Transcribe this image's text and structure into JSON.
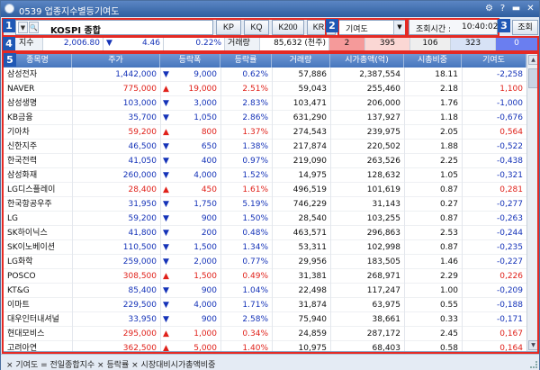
{
  "window": {
    "title": "0539 업종지수별등기여도",
    "settings_icon": "gear-icon",
    "help_label": "?",
    "min_label": "▬",
    "close_label": "✕"
  },
  "markers": [
    "1",
    "2",
    "3",
    "4",
    "5"
  ],
  "toolbar": {
    "code_name": "KOSPI 종합",
    "buttons": [
      "KP",
      "KQ",
      "K200",
      "KRX"
    ],
    "combo_value": "기여도",
    "time_label": "조회시간 :",
    "time_value": "10:40:02",
    "query_button": "조회"
  },
  "summary": {
    "index_label": "지수",
    "index_value": "2,006.80",
    "change_arrow": "▼",
    "change_value": "4.46",
    "change_rate": "0.22%",
    "volume_label": "거래량",
    "volume_value": "85,632 (천주)",
    "stat1": "2",
    "stat2": "395",
    "stat3": "106",
    "stat4": "323",
    "stat5": "0"
  },
  "columns": [
    "종목명",
    "주가",
    "등락폭",
    "등락률",
    "거래량",
    "시가총액(억)",
    "시총비중",
    "기여도"
  ],
  "rows": [
    {
      "name": "삼성전자",
      "price": "1,442,000",
      "dir": "down",
      "change": "9,000",
      "rate": "0.62%",
      "volume": "57,886",
      "cap": "2,387,554",
      "weight": "18.11",
      "contrib": "-2,258"
    },
    {
      "name": "NAVER",
      "price": "775,000",
      "dir": "up",
      "change": "19,000",
      "rate": "2.51%",
      "volume": "59,043",
      "cap": "255,460",
      "weight": "2.18",
      "contrib": "1,100"
    },
    {
      "name": "삼성생명",
      "price": "103,000",
      "dir": "down",
      "change": "3,000",
      "rate": "2.83%",
      "volume": "103,471",
      "cap": "206,000",
      "weight": "1.76",
      "contrib": "-1,000"
    },
    {
      "name": "KB금융",
      "price": "35,700",
      "dir": "down",
      "change": "1,050",
      "rate": "2.86%",
      "volume": "631,290",
      "cap": "137,927",
      "weight": "1.18",
      "contrib": "-0,676"
    },
    {
      "name": "기아차",
      "price": "59,200",
      "dir": "up",
      "change": "800",
      "rate": "1.37%",
      "volume": "274,543",
      "cap": "239,975",
      "weight": "2.05",
      "contrib": "0,564"
    },
    {
      "name": "신한지주",
      "price": "46,500",
      "dir": "down",
      "change": "650",
      "rate": "1.38%",
      "volume": "217,874",
      "cap": "220,502",
      "weight": "1.88",
      "contrib": "-0,522"
    },
    {
      "name": "한국전력",
      "price": "41,050",
      "dir": "down",
      "change": "400",
      "rate": "0.97%",
      "volume": "219,090",
      "cap": "263,526",
      "weight": "2.25",
      "contrib": "-0,438"
    },
    {
      "name": "삼성화재",
      "price": "260,000",
      "dir": "down",
      "change": "4,000",
      "rate": "1.52%",
      "volume": "14,975",
      "cap": "128,632",
      "weight": "1.05",
      "contrib": "-0,321"
    },
    {
      "name": "LG디스플레이",
      "price": "28,400",
      "dir": "up",
      "change": "450",
      "rate": "1.61%",
      "volume": "496,519",
      "cap": "101,619",
      "weight": "0.87",
      "contrib": "0,281"
    },
    {
      "name": "한국항공우주",
      "price": "31,950",
      "dir": "down",
      "change": "1,750",
      "rate": "5.19%",
      "volume": "746,229",
      "cap": "31,143",
      "weight": "0.27",
      "contrib": "-0,277"
    },
    {
      "name": "LG",
      "price": "59,200",
      "dir": "down",
      "change": "900",
      "rate": "1.50%",
      "volume": "28,540",
      "cap": "103,255",
      "weight": "0.87",
      "contrib": "-0,263"
    },
    {
      "name": "SK하이닉스",
      "price": "41,800",
      "dir": "down",
      "change": "200",
      "rate": "0.48%",
      "volume": "463,571",
      "cap": "296,863",
      "weight": "2.53",
      "contrib": "-0,244"
    },
    {
      "name": "SK이노베이션",
      "price": "110,500",
      "dir": "down",
      "change": "1,500",
      "rate": "1.34%",
      "volume": "53,311",
      "cap": "102,998",
      "weight": "0.87",
      "contrib": "-0,235"
    },
    {
      "name": "LG화학",
      "price": "259,000",
      "dir": "down",
      "change": "2,000",
      "rate": "0.77%",
      "volume": "29,956",
      "cap": "183,505",
      "weight": "1.46",
      "contrib": "-0,227"
    },
    {
      "name": "POSCO",
      "price": "308,500",
      "dir": "up",
      "change": "1,500",
      "rate": "0.49%",
      "volume": "31,381",
      "cap": "268,971",
      "weight": "2.29",
      "contrib": "0,226"
    },
    {
      "name": "KT&G",
      "price": "85,400",
      "dir": "down",
      "change": "900",
      "rate": "1.04%",
      "volume": "22,498",
      "cap": "117,247",
      "weight": "1.00",
      "contrib": "-0,209"
    },
    {
      "name": "이마트",
      "price": "229,500",
      "dir": "down",
      "change": "4,000",
      "rate": "1.71%",
      "volume": "31,874",
      "cap": "63,975",
      "weight": "0.55",
      "contrib": "-0,188"
    },
    {
      "name": "대우인터내셔널",
      "price": "33,950",
      "dir": "down",
      "change": "900",
      "rate": "2.58%",
      "volume": "75,940",
      "cap": "38,661",
      "weight": "0.33",
      "contrib": "-0,171"
    },
    {
      "name": "현대모비스",
      "price": "295,000",
      "dir": "up",
      "change": "1,000",
      "rate": "0.34%",
      "volume": "24,859",
      "cap": "287,172",
      "weight": "2.45",
      "contrib": "0,167"
    },
    {
      "name": "고려아연",
      "price": "362,500",
      "dir": "up",
      "change": "5,000",
      "rate": "1.40%",
      "volume": "10,975",
      "cap": "68,403",
      "weight": "0.58",
      "contrib": "0,164"
    }
  ],
  "footer": {
    "text": "기여도 = 전일종합지수 × 등락률 × 시장대비시가총액비중"
  },
  "colors": {
    "up": "#e0211a",
    "down": "#1533b8",
    "header": "#4676bd",
    "marker": "#1f58b5",
    "highlight": "#e52a24"
  }
}
